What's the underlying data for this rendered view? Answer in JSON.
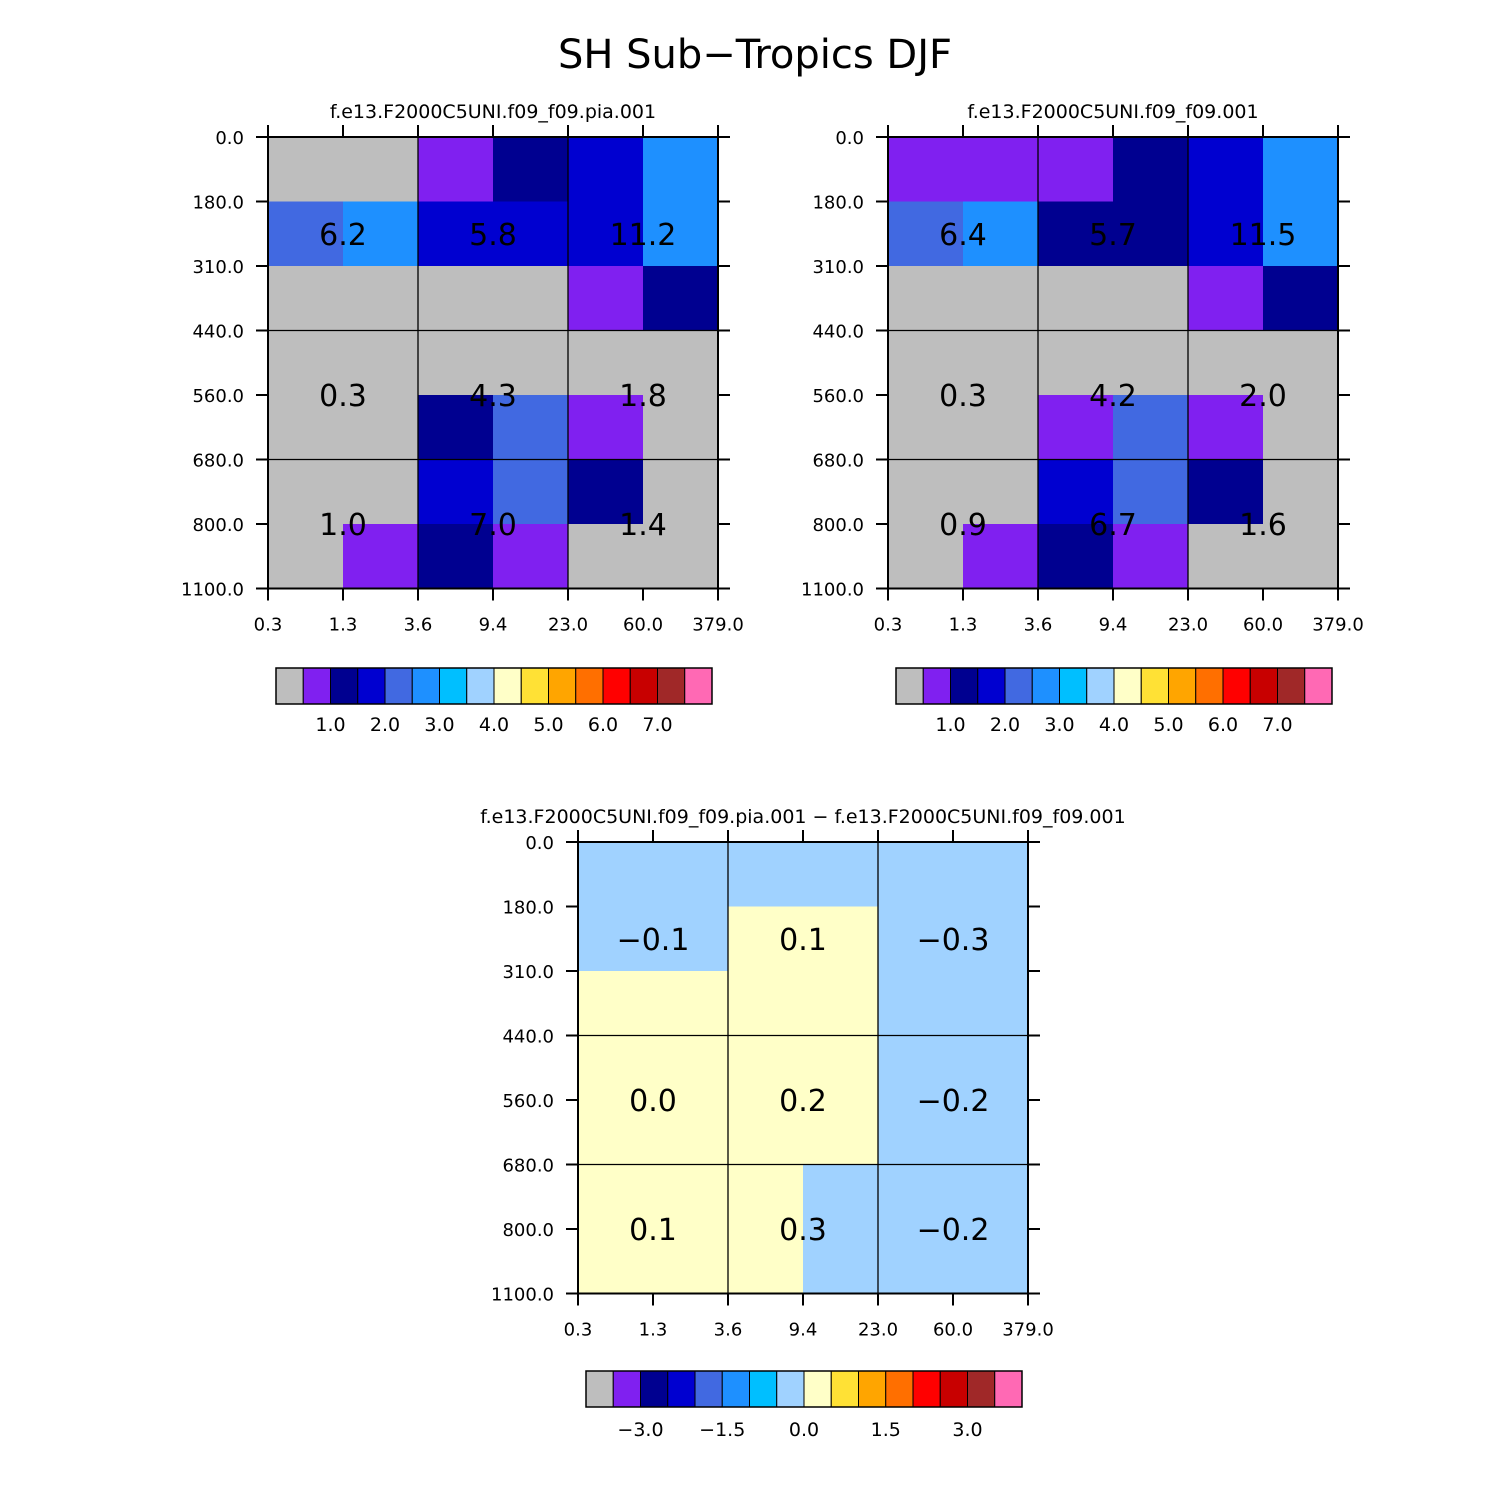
{
  "title": "SH Sub−Tropics DJF",
  "chart_data": [
    {
      "type": "heatmap",
      "title": "f.e13.F2000C5UNI.f09_f09.pia.001",
      "x_ticks": [
        "0.3",
        "1.3",
        "3.6",
        "9.4",
        "23.0",
        "60.0",
        "379.0"
      ],
      "y_ticks": [
        "0.0",
        "180.0",
        "310.0",
        "440.0",
        "560.0",
        "680.0",
        "800.0",
        "1100.0"
      ],
      "fine_cells": [
        [
          0,
          0,
          1,
          2,
          3,
          5
        ],
        [
          4,
          5,
          3,
          3,
          3,
          5
        ],
        [
          0,
          0,
          0,
          0,
          1,
          2
        ],
        [
          0,
          0,
          0,
          0,
          0,
          0
        ],
        [
          0,
          0,
          2,
          4,
          1,
          0
        ],
        [
          0,
          0,
          3,
          4,
          2,
          0
        ],
        [
          0,
          1,
          2,
          1,
          0,
          0
        ]
      ],
      "box_values": [
        [
          "6.2",
          "5.8",
          "11.2"
        ],
        [
          "0.3",
          "4.3",
          "1.8"
        ],
        [
          "1.0",
          "7.0",
          "1.4"
        ]
      ],
      "colorbar_ticks": [
        "1.0",
        "2.0",
        "3.0",
        "4.0",
        "5.0",
        "6.0",
        "7.0"
      ]
    },
    {
      "type": "heatmap",
      "title": "f.e13.F2000C5UNI.f09_f09.001",
      "x_ticks": [
        "0.3",
        "1.3",
        "3.6",
        "9.4",
        "23.0",
        "60.0",
        "379.0"
      ],
      "y_ticks": [
        "0.0",
        "180.0",
        "310.0",
        "440.0",
        "560.0",
        "680.0",
        "800.0",
        "1100.0"
      ],
      "fine_cells": [
        [
          1,
          1,
          1,
          2,
          3,
          5
        ],
        [
          4,
          5,
          2,
          2,
          3,
          5
        ],
        [
          0,
          0,
          0,
          0,
          1,
          2
        ],
        [
          0,
          0,
          0,
          0,
          0,
          0
        ],
        [
          0,
          0,
          1,
          4,
          1,
          0
        ],
        [
          0,
          0,
          3,
          4,
          2,
          0
        ],
        [
          0,
          1,
          2,
          1,
          0,
          0
        ]
      ],
      "box_values": [
        [
          "6.4",
          "5.7",
          "11.5"
        ],
        [
          "0.3",
          "4.2",
          "2.0"
        ],
        [
          "0.9",
          "6.7",
          "1.6"
        ]
      ],
      "colorbar_ticks": [
        "1.0",
        "2.0",
        "3.0",
        "4.0",
        "5.0",
        "6.0",
        "7.0"
      ]
    },
    {
      "type": "heatmap",
      "title": "f.e13.F2000C5UNI.f09_f09.pia.001 − f.e13.F2000C5UNI.f09_f09.001",
      "x_ticks": [
        "0.3",
        "1.3",
        "3.6",
        "9.4",
        "23.0",
        "60.0",
        "379.0"
      ],
      "y_ticks": [
        "0.0",
        "180.0",
        "310.0",
        "440.0",
        "560.0",
        "680.0",
        "800.0",
        "1100.0"
      ],
      "fine_cells": [
        [
          7,
          7,
          7,
          7,
          7,
          7
        ],
        [
          7,
          7,
          8,
          8,
          7,
          7
        ],
        [
          8,
          8,
          8,
          8,
          7,
          7
        ],
        [
          8,
          8,
          8,
          8,
          7,
          7
        ],
        [
          8,
          8,
          8,
          8,
          7,
          7
        ],
        [
          8,
          8,
          8,
          7,
          7,
          7
        ],
        [
          8,
          8,
          8,
          7,
          7,
          7
        ]
      ],
      "box_values": [
        [
          "−0.1",
          "0.1",
          "−0.3"
        ],
        [
          "0.0",
          "0.2",
          "−0.2"
        ],
        [
          "0.1",
          "0.3",
          "−0.2"
        ]
      ],
      "colorbar_ticks": [
        "−3.0",
        "−1.5",
        "0.0",
        "1.5",
        "3.0"
      ]
    }
  ],
  "palette": [
    "#bebebe",
    "#8020f0",
    "#000090",
    "#0000d0",
    "#4169e1",
    "#1e90ff",
    "#00bfff",
    "#a0d2ff",
    "#ffffc8",
    "#ffe135",
    "#ffa500",
    "#ff6f00",
    "#ff0000",
    "#c80000",
    "#a02828",
    "#ff69b4"
  ]
}
